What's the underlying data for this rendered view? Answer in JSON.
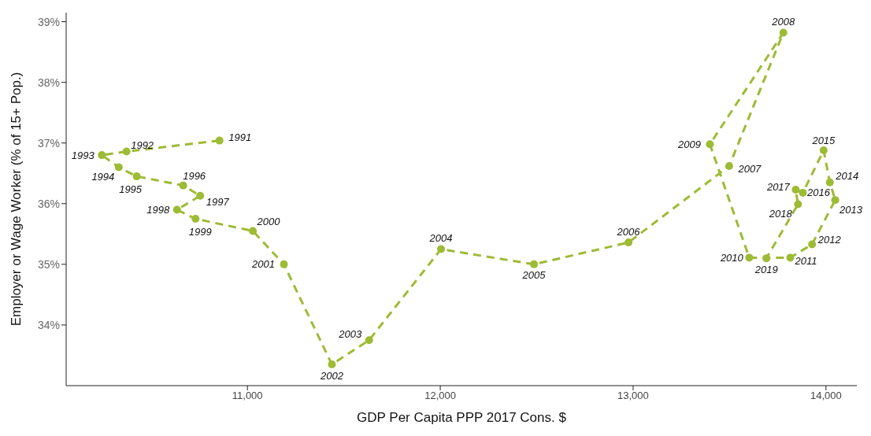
{
  "chart_data": {
    "type": "line",
    "xlabel": "GDP Per Capita PPP 2017 Cons. $",
    "ylabel": "Employer or Wage Worker (% of 15+ Pop.)",
    "series": [
      {
        "color": "#9dbb34",
        "x": [
          10855,
          10373,
          10245,
          10333,
          10426,
          10667,
          10755,
          10635,
          10731,
          11028,
          11189,
          11438,
          11631,
          12004,
          12486,
          12976,
          13498,
          13779,
          13398,
          13602,
          13815,
          13928,
          14048,
          14020,
          13988,
          13880,
          13843,
          13855,
          13691
        ],
        "values": [
          37.04,
          36.86,
          36.8,
          36.6,
          36.45,
          36.3,
          36.13,
          35.9,
          35.75,
          35.55,
          35.0,
          33.35,
          33.75,
          35.25,
          35.0,
          35.36,
          36.62,
          38.82,
          36.98,
          35.11,
          35.11,
          35.33,
          36.06,
          36.35,
          36.88,
          36.18,
          36.23,
          35.99,
          35.1
        ]
      }
    ],
    "xlim": [
      10060,
      14160
    ],
    "ylim": [
      33.0,
      39.15
    ],
    "xticks": [
      {
        "value": 11000,
        "label": "11,000"
      },
      {
        "value": 12000,
        "label": "12,000"
      },
      {
        "value": 13000,
        "label": "13,000"
      },
      {
        "value": 14000,
        "label": "14,000"
      }
    ],
    "yticks": [
      {
        "value": 34,
        "label": "34%"
      },
      {
        "value": 35,
        "label": "35%"
      },
      {
        "value": 36,
        "label": "36%"
      },
      {
        "value": 37,
        "label": "37%"
      },
      {
        "value": 38,
        "label": "38%"
      },
      {
        "value": 39,
        "label": "39%"
      }
    ],
    "grid": false,
    "legend": false,
    "marker": "circle",
    "line_style": "dashed",
    "annotations": [
      {
        "text": "1991",
        "x": 10855,
        "y": 37.04
      },
      {
        "text": "1992",
        "x": 10373,
        "y": 36.86
      },
      {
        "text": "1993",
        "x": 10245,
        "y": 36.8
      },
      {
        "text": "1994",
        "x": 10333,
        "y": 36.6
      },
      {
        "text": "1995",
        "x": 10426,
        "y": 36.45
      },
      {
        "text": "1996",
        "x": 10667,
        "y": 36.3
      },
      {
        "text": "1997",
        "x": 10755,
        "y": 36.13
      },
      {
        "text": "1998",
        "x": 10635,
        "y": 35.9
      },
      {
        "text": "1999",
        "x": 10731,
        "y": 35.75
      },
      {
        "text": "2000",
        "x": 11028,
        "y": 35.55
      },
      {
        "text": "2001",
        "x": 11189,
        "y": 35.0
      },
      {
        "text": "2002",
        "x": 11438,
        "y": 33.35
      },
      {
        "text": "2003",
        "x": 11631,
        "y": 33.75
      },
      {
        "text": "2004",
        "x": 12004,
        "y": 35.25
      },
      {
        "text": "2005",
        "x": 12486,
        "y": 35.0
      },
      {
        "text": "2006",
        "x": 12976,
        "y": 35.36
      },
      {
        "text": "2007",
        "x": 13498,
        "y": 36.62
      },
      {
        "text": "2008",
        "x": 13779,
        "y": 38.82
      },
      {
        "text": "2009",
        "x": 13398,
        "y": 36.98
      },
      {
        "text": "2010",
        "x": 13602,
        "y": 35.11
      },
      {
        "text": "2011",
        "x": 13815,
        "y": 35.11
      },
      {
        "text": "2012",
        "x": 13928,
        "y": 35.33
      },
      {
        "text": "2013",
        "x": 14048,
        "y": 36.06
      },
      {
        "text": "2014",
        "x": 14020,
        "y": 36.35
      },
      {
        "text": "2015",
        "x": 13988,
        "y": 36.88
      },
      {
        "text": "2016",
        "x": 13880,
        "y": 36.18
      },
      {
        "text": "2017",
        "x": 13843,
        "y": 36.23
      },
      {
        "text": "2018",
        "x": 13855,
        "y": 35.99
      },
      {
        "text": "2019",
        "x": 13691,
        "y": 35.1
      }
    ]
  }
}
